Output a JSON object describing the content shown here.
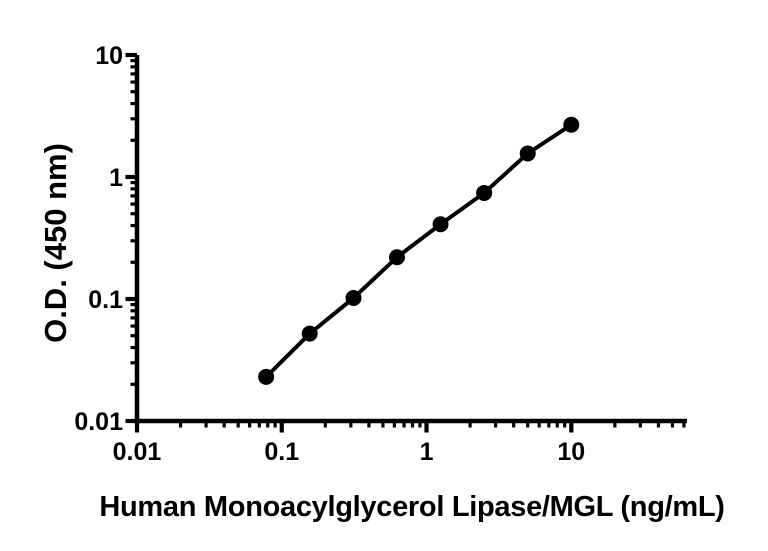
{
  "figure": {
    "background_color": "#ffffff",
    "axis_color": "#000000"
  },
  "chart_data": {
    "type": "line",
    "title": "",
    "xlabel": "Human Monoacylglycerol Lipase/MGL (ng/mL)",
    "ylabel": "O.D. (450 nm)",
    "x_scale": "log",
    "y_scale": "log",
    "xlim": [
      0.01,
      63
    ],
    "ylim": [
      0.01,
      10
    ],
    "grid": false,
    "legend": false,
    "x_major_ticks": [
      {
        "value": 0.01,
        "label": "0.01"
      },
      {
        "value": 0.1,
        "label": "0.1"
      },
      {
        "value": 1,
        "label": "1"
      },
      {
        "value": 10,
        "label": "10"
      }
    ],
    "y_major_ticks": [
      {
        "value": 0.01,
        "label": "0.01"
      },
      {
        "value": 0.1,
        "label": "0.1"
      },
      {
        "value": 1,
        "label": "1"
      },
      {
        "value": 10,
        "label": "10"
      }
    ],
    "series": [
      {
        "marker": "filled-circle",
        "line_color": "#000000",
        "marker_color": "#000000",
        "points": [
          {
            "x": 0.078,
            "y": 0.023
          },
          {
            "x": 0.156,
            "y": 0.052
          },
          {
            "x": 0.313,
            "y": 0.102
          },
          {
            "x": 0.625,
            "y": 0.22
          },
          {
            "x": 1.25,
            "y": 0.41
          },
          {
            "x": 2.5,
            "y": 0.74
          },
          {
            "x": 5,
            "y": 1.56
          },
          {
            "x": 10,
            "y": 2.68
          }
        ]
      }
    ]
  }
}
